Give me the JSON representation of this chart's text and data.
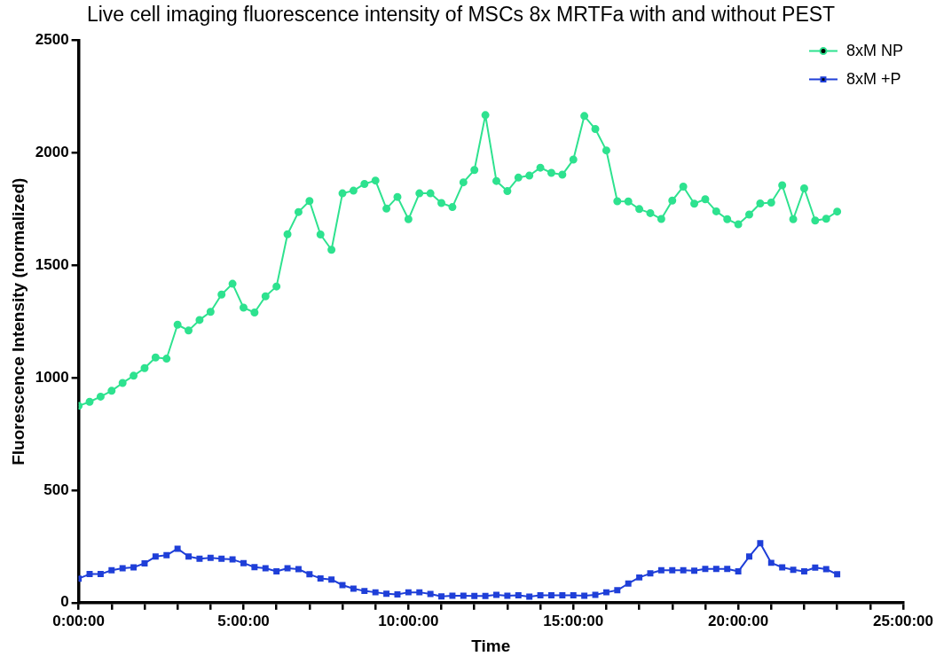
{
  "chart_data": {
    "type": "line",
    "title": "Live cell imaging fluorescence intensity of MSCs 8x MRTFa with and without PEST",
    "xlabel": "Time",
    "ylabel": "Fluorescence Intensity (normalized)",
    "x": [
      0,
      0.3333,
      0.6667,
      1,
      1.3333,
      1.6667,
      2,
      2.3333,
      2.6667,
      3,
      3.3333,
      3.6667,
      4,
      4.3333,
      4.6667,
      5,
      5.3333,
      5.6667,
      6,
      6.3333,
      6.6667,
      7,
      7.3333,
      7.6667,
      8,
      8.3333,
      8.6667,
      9,
      9.3333,
      9.6667,
      10,
      10.3333,
      10.6667,
      11,
      11.3333,
      11.6667,
      12,
      12.3333,
      12.6667,
      13,
      13.3333,
      13.6667,
      14,
      14.3333,
      14.6667,
      15,
      15.3333,
      15.6667,
      16,
      16.3333,
      16.6667,
      17,
      17.3333,
      17.6667,
      18,
      18.3333,
      18.6667,
      19,
      19.3333,
      19.6667,
      20,
      20.3333,
      20.6667,
      21,
      21.3333,
      21.6667,
      22,
      22.3333,
      22.6667,
      23
    ],
    "series": [
      {
        "name": "8xM NP",
        "color": "#2ee28f",
        "marker": "circle",
        "values": [
          875,
          893,
          916,
          942,
          977,
          1009,
          1043,
          1090,
          1085,
          1236,
          1210,
          1257,
          1293,
          1370,
          1418,
          1312,
          1290,
          1362,
          1406,
          1638,
          1737,
          1786,
          1637,
          1569,
          1820,
          1832,
          1862,
          1877,
          1752,
          1804,
          1705,
          1820,
          1820,
          1777,
          1759,
          1869,
          1924,
          2168,
          1875,
          1830,
          1890,
          1899,
          1934,
          1911,
          1903,
          1970,
          2164,
          2106,
          2011,
          1785,
          1784,
          1750,
          1732,
          1706,
          1788,
          1850,
          1774,
          1794,
          1740,
          1705,
          1682,
          1726,
          1775,
          1779,
          1856,
          1705,
          1842,
          1699,
          1707,
          1739
        ]
      },
      {
        "name": "8xM +P",
        "color": "#1f3fd8",
        "marker": "square",
        "values": [
          107,
          127,
          127,
          144,
          153,
          157,
          175,
          205,
          211,
          240,
          205,
          195,
          199,
          195,
          192,
          176,
          158,
          153,
          139,
          153,
          149,
          126,
          108,
          103,
          78,
          62,
          52,
          46,
          40,
          37,
          46,
          46,
          39,
          28,
          31,
          31,
          30,
          30,
          35,
          31,
          33,
          27,
          33,
          33,
          33,
          33,
          31,
          35,
          46,
          55,
          85,
          112,
          130,
          144,
          144,
          144,
          142,
          150,
          150,
          150,
          139,
          205,
          264,
          177,
          157,
          146,
          139,
          156,
          149,
          126
        ]
      }
    ],
    "xlim": [
      0,
      25
    ],
    "xticks": [
      {
        "value": 0,
        "label": "0:00:00"
      },
      {
        "value": 1,
        "label": null
      },
      {
        "value": 2,
        "label": null
      },
      {
        "value": 3,
        "label": null
      },
      {
        "value": 4,
        "label": null
      },
      {
        "value": 5,
        "label": "5:00:00"
      },
      {
        "value": 6,
        "label": null
      },
      {
        "value": 7,
        "label": null
      },
      {
        "value": 8,
        "label": null
      },
      {
        "value": 9,
        "label": null
      },
      {
        "value": 10,
        "label": "10:00:00"
      },
      {
        "value": 11,
        "label": null
      },
      {
        "value": 12,
        "label": null
      },
      {
        "value": 13,
        "label": null
      },
      {
        "value": 14,
        "label": null
      },
      {
        "value": 15,
        "label": "15:00:00"
      },
      {
        "value": 16,
        "label": null
      },
      {
        "value": 17,
        "label": null
      },
      {
        "value": 18,
        "label": null
      },
      {
        "value": 19,
        "label": null
      },
      {
        "value": 20,
        "label": "20:00:00"
      },
      {
        "value": 21,
        "label": null
      },
      {
        "value": 22,
        "label": null
      },
      {
        "value": 23,
        "label": null
      },
      {
        "value": 24,
        "label": null
      },
      {
        "value": 25,
        "label": "25:00:00"
      }
    ],
    "ylim": [
      0,
      2500
    ],
    "yticks": [
      0,
      500,
      1000,
      1500,
      2000,
      2500
    ],
    "legend": "top right",
    "line_style": "solid"
  }
}
